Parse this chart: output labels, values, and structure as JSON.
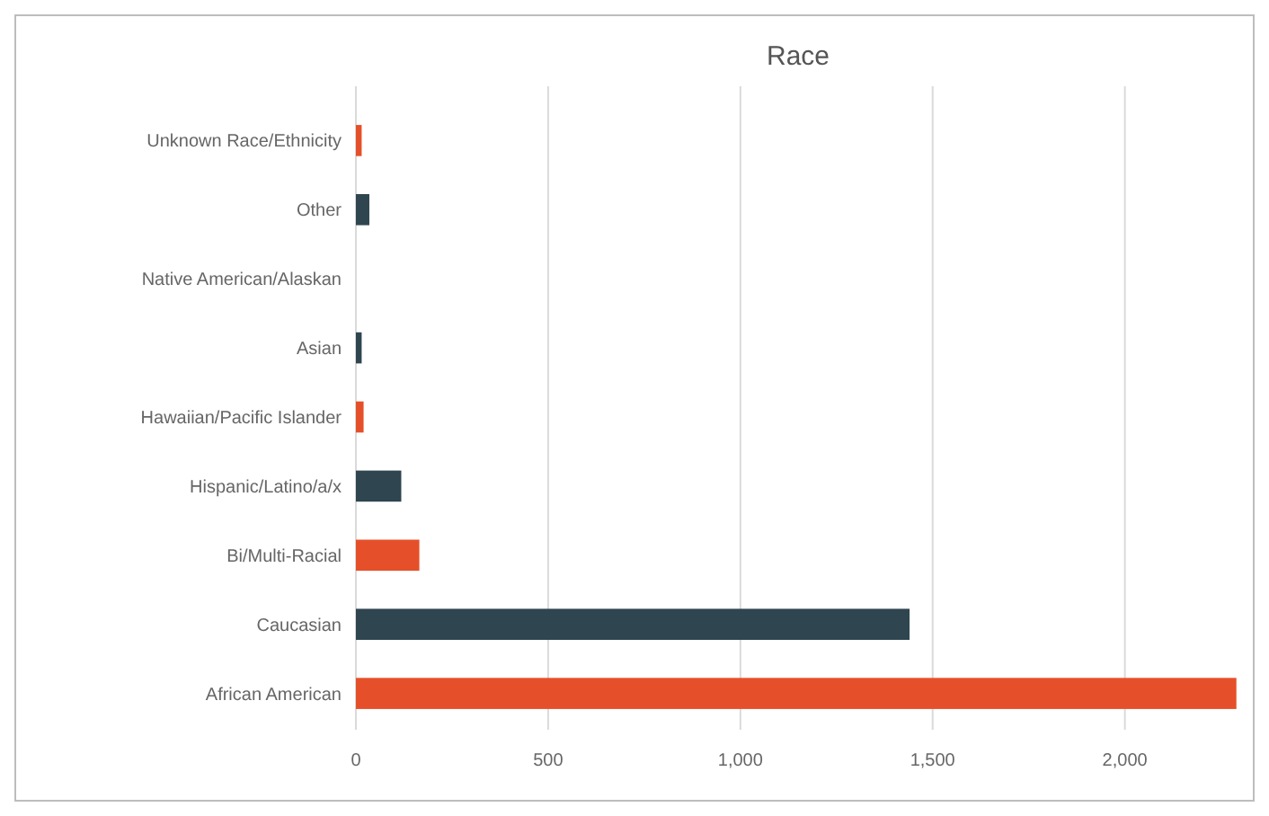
{
  "chart_data": {
    "type": "bar",
    "orientation": "horizontal",
    "title": "Race",
    "categories": [
      "Unknown Race/Ethnicity",
      "Other",
      "Native American/Alaskan",
      "Asian",
      "Hawaiian/Pacific Islander",
      "Hispanic/Latino/a/x",
      "Bi/Multi-Racial",
      "Caucasian",
      "African American"
    ],
    "values": [
      15,
      35,
      0,
      15,
      20,
      118,
      165,
      1440,
      2290
    ],
    "colors": [
      "#e5502a",
      "#2f4550",
      "#e5502a",
      "#2f4550",
      "#e5502a",
      "#2f4550",
      "#e5502a",
      "#2f4550",
      "#e5502a"
    ],
    "xlim": [
      0,
      2300
    ],
    "xticks": [
      0,
      500,
      {
        "value": 1000,
        "label": "1,000"
      },
      {
        "value": 1500,
        "label": "1,500"
      },
      {
        "value": 2000,
        "label": "2,000"
      }
    ],
    "grid": "x"
  }
}
